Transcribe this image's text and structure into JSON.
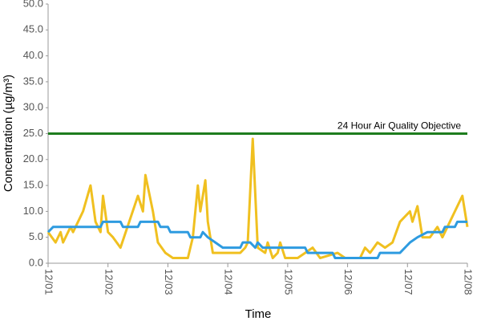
{
  "chart_data": {
    "type": "line",
    "x_label": "Time",
    "y_label": "Concentration (µg/m³)",
    "xlim": [
      0,
      168
    ],
    "xticks": [
      {
        "value": 0,
        "label": "12/01"
      },
      {
        "value": 24,
        "label": "12/02"
      },
      {
        "value": 48,
        "label": "12/03"
      },
      {
        "value": 72,
        "label": "12/04"
      },
      {
        "value": 96,
        "label": "12/05"
      },
      {
        "value": 120,
        "label": "12/06"
      },
      {
        "value": 144,
        "label": "12/07"
      },
      {
        "value": 168,
        "label": "12/08"
      }
    ],
    "ylim": [
      0,
      50
    ],
    "yticks": [
      {
        "value": 0,
        "label": "0.0"
      },
      {
        "value": 5,
        "label": "5.0"
      },
      {
        "value": 10,
        "label": "10.0"
      },
      {
        "value": 15,
        "label": "15.0"
      },
      {
        "value": 20,
        "label": "20.0"
      },
      {
        "value": 25,
        "label": "25.0"
      },
      {
        "value": 30,
        "label": "30.0"
      },
      {
        "value": 35,
        "label": "35.0"
      },
      {
        "value": 40,
        "label": "40.0"
      },
      {
        "value": 45,
        "label": "45.0"
      },
      {
        "value": 50,
        "label": "50.0"
      }
    ],
    "grid": false,
    "series": [
      {
        "color": "#f0c020",
        "x": [
          0,
          3,
          5,
          6,
          9,
          10,
          12,
          14,
          17,
          19,
          21,
          22,
          24,
          26,
          29,
          36,
          38,
          39,
          42,
          44,
          47,
          50,
          56,
          58,
          60,
          61,
          63,
          64,
          66,
          77,
          79,
          80,
          82,
          84,
          87,
          88,
          90,
          92,
          93,
          95,
          100,
          103,
          106,
          109,
          116,
          119,
          125,
          127,
          129,
          132,
          135,
          138,
          141,
          145,
          146,
          148,
          150,
          153,
          156,
          158,
          161,
          163,
          166,
          168
        ],
        "values": [
          6,
          4,
          6,
          4,
          7,
          6,
          8,
          10,
          15,
          8,
          6,
          13,
          6,
          5,
          3,
          13,
          10,
          17,
          10,
          4,
          2,
          1,
          1,
          5,
          15,
          10,
          16,
          8,
          2,
          2,
          3,
          4,
          24,
          3,
          2,
          4,
          1,
          2,
          4,
          1,
          1,
          2,
          3,
          1,
          2,
          1,
          1,
          3,
          2,
          4,
          3,
          4,
          8,
          10,
          8,
          11,
          5,
          5,
          7,
          5,
          8,
          10,
          13,
          7
        ]
      },
      {
        "color": "#2e9be0",
        "x": [
          0,
          2,
          21,
          22,
          29,
          30,
          36,
          37,
          44,
          45,
          48,
          49,
          56,
          57,
          61,
          62,
          64,
          67,
          70,
          77,
          78,
          81,
          83,
          84,
          86,
          103,
          104,
          114,
          115,
          132,
          133,
          141,
          143,
          145,
          148,
          152,
          158,
          159,
          163,
          164,
          168
        ],
        "values": [
          6,
          7,
          7,
          8,
          8,
          7,
          7,
          8,
          8,
          7,
          7,
          6,
          6,
          5,
          5,
          6,
          5,
          4,
          3,
          3,
          4,
          4,
          3,
          4,
          3,
          3,
          2,
          2,
          1,
          1,
          2,
          2,
          3,
          4,
          5,
          6,
          6,
          7,
          7,
          8,
          8
        ]
      },
      {
        "name": "24 Hour Air Quality Objective",
        "color": "#1e7d1e",
        "x": [
          0,
          168
        ],
        "values": [
          25,
          25
        ]
      }
    ]
  }
}
